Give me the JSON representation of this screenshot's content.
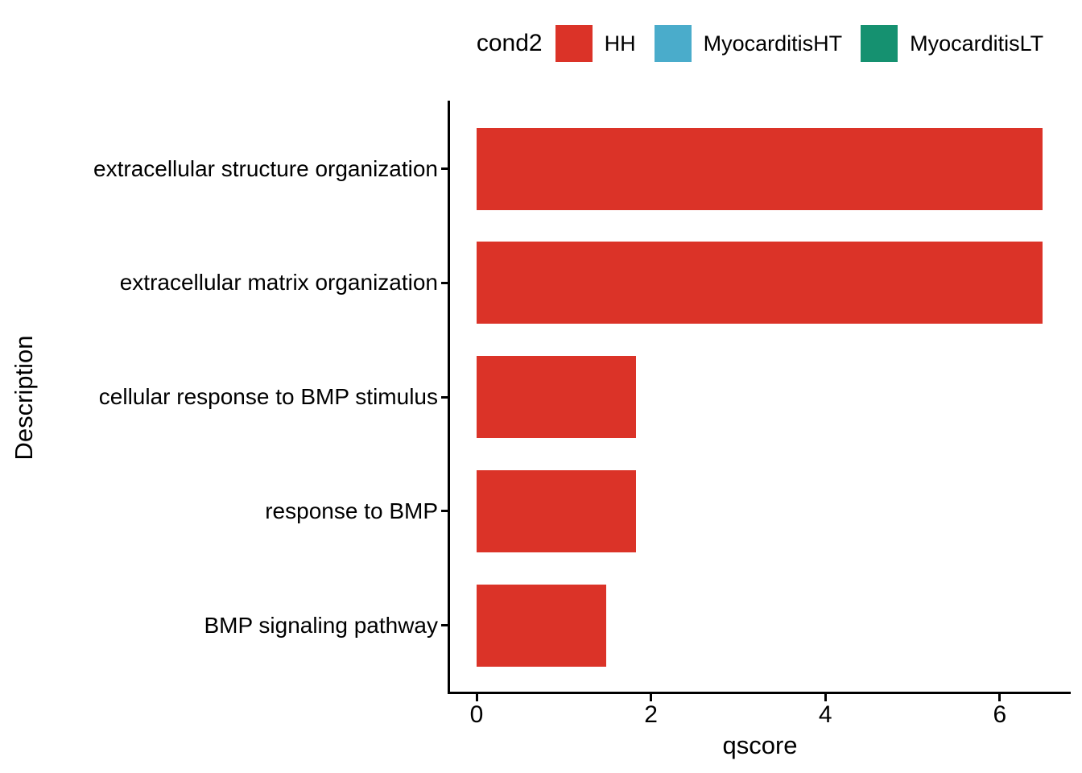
{
  "figure": {
    "background": "#ffffff",
    "legend": {
      "title": "cond2",
      "items": [
        {
          "label": "HH",
          "color": "#db3328"
        },
        {
          "label": "MyocarditisHT",
          "color": "#4aaccb"
        },
        {
          "label": "MyocarditisLT",
          "color": "#159170"
        }
      ]
    },
    "x_axis_title": "qscore",
    "y_axis_title": "Description"
  },
  "chart_data": {
    "type": "bar",
    "orientation": "horizontal",
    "title": "",
    "xlabel": "qscore",
    "ylabel": "Description",
    "categories": [
      "extracellular structure organization",
      "extracellular matrix organization",
      "cellular response to BMP stimulus",
      "response to BMP",
      "BMP signaling pathway"
    ],
    "series": [
      {
        "name": "HH",
        "color": "#db3328",
        "values": [
          6.49,
          6.49,
          1.83,
          1.83,
          1.49
        ]
      },
      {
        "name": "MyocarditisHT",
        "color": "#4aaccb",
        "values": []
      },
      {
        "name": "MyocarditisLT",
        "color": "#159170",
        "values": []
      }
    ],
    "legend_entries": [
      "HH",
      "MyocarditisHT",
      "MyocarditisLT"
    ],
    "xticks": [
      0,
      2,
      4,
      6
    ],
    "xlim": [
      -0.31,
      6.81
    ],
    "grid": false,
    "legend_position": "top",
    "axis_color": "#000000",
    "bar_fill": "#db3328"
  }
}
